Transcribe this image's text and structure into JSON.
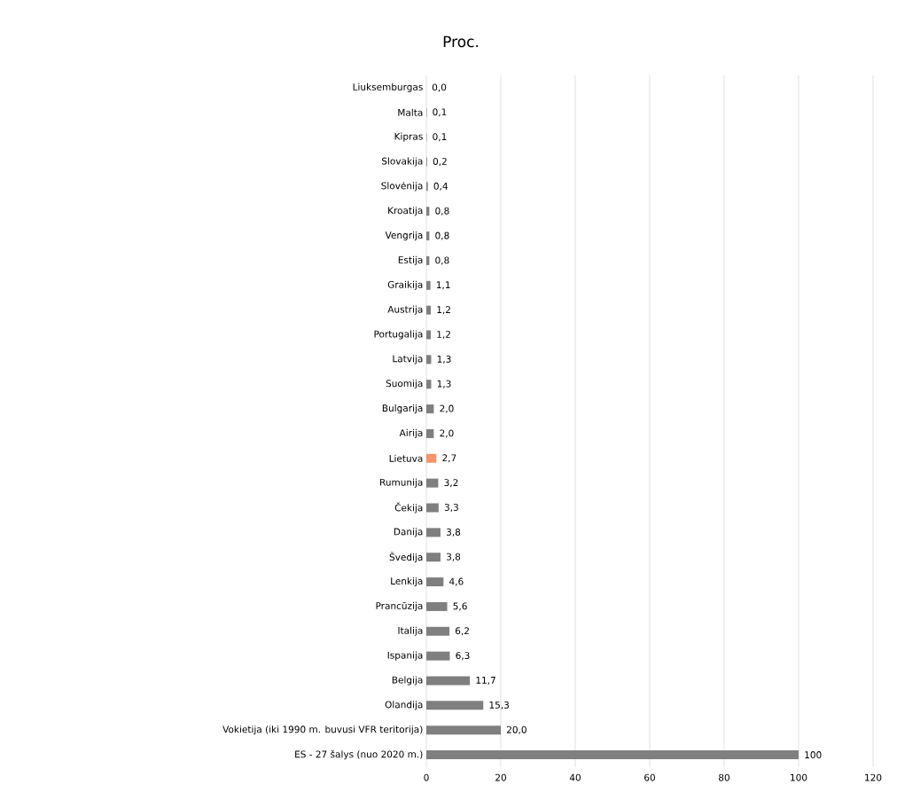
{
  "chart_data": {
    "type": "bar",
    "orientation": "horizontal",
    "title": "Proc.",
    "categories": [
      "Liuksemburgas",
      "Malta",
      "Kipras",
      "Slovakija",
      "Slovėnija",
      "Kroatija",
      "Vengrija",
      "Estija",
      "Graikija",
      "Austrija",
      "Portugalija",
      "Latvija",
      "Suomija",
      "Bulgarija",
      "Airija",
      "Lietuva",
      "Rumunija",
      "Čekija",
      "Danija",
      "Švedija",
      "Lenkija",
      "Prancūzija",
      "Italija",
      "Ispanija",
      "Belgija",
      "Olandija",
      "Vokietija (iki 1990 m. buvusi VFR teritorija)",
      "ES - 27 šalys (nuo 2020 m.)"
    ],
    "values": [
      0.0,
      0.1,
      0.1,
      0.2,
      0.4,
      0.8,
      0.8,
      0.8,
      1.1,
      1.2,
      1.2,
      1.3,
      1.3,
      2.0,
      2.0,
      2.7,
      3.2,
      3.3,
      3.8,
      3.8,
      4.6,
      5.6,
      6.2,
      6.3,
      11.7,
      15.3,
      20.0,
      100
    ],
    "value_labels": [
      "0,0",
      "0,1",
      "0,1",
      "0,2",
      "0,4",
      "0,8",
      "0,8",
      "0,8",
      "1,1",
      "1,2",
      "1,2",
      "1,3",
      "1,3",
      "2,0",
      "2,0",
      "2,7",
      "3,2",
      "3,3",
      "3,8",
      "3,8",
      "4,6",
      "5,6",
      "6,2",
      "6,3",
      "11,7",
      "15,3",
      "20,0",
      "100"
    ],
    "colors": [
      "#7f7f7f",
      "#7f7f7f",
      "#7f7f7f",
      "#7f7f7f",
      "#7f7f7f",
      "#7f7f7f",
      "#7f7f7f",
      "#7f7f7f",
      "#7f7f7f",
      "#7f7f7f",
      "#7f7f7f",
      "#7f7f7f",
      "#7f7f7f",
      "#7f7f7f",
      "#7f7f7f",
      "#f4956b",
      "#7f7f7f",
      "#7f7f7f",
      "#7f7f7f",
      "#7f7f7f",
      "#7f7f7f",
      "#7f7f7f",
      "#7f7f7f",
      "#7f7f7f",
      "#7f7f7f",
      "#7f7f7f",
      "#7f7f7f",
      "#7f7f7f"
    ],
    "xlim": [
      0,
      120
    ],
    "xticks": [
      0,
      20,
      40,
      60,
      80,
      100,
      120
    ],
    "grid": "x"
  }
}
